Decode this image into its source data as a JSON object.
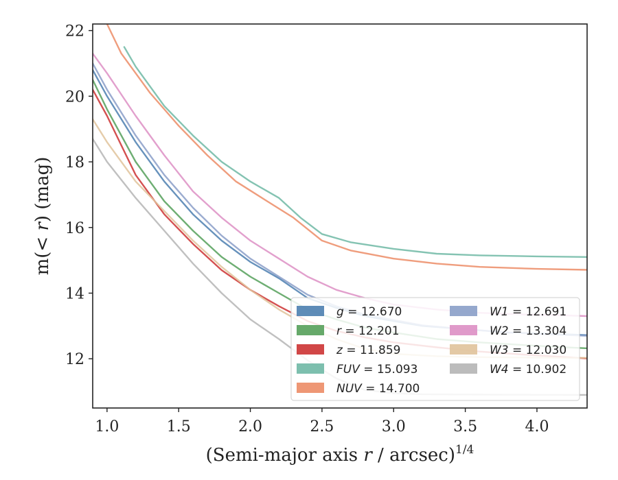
{
  "chart_data": {
    "type": "line",
    "xlabel_pre": "(Semi-major axis ",
    "xlabel_var": "r",
    "xlabel_post": " / arcsec)",
    "xlabel_sup": "1/4",
    "ylabel_pre": "m(< ",
    "ylabel_var": "r",
    "ylabel_post": ") (mag)",
    "xlim": [
      0.9,
      4.35
    ],
    "ylim": [
      22.2,
      10.5
    ],
    "y_inverted": true,
    "xticks": [
      1.0,
      1.5,
      2.0,
      2.5,
      3.0,
      3.5,
      4.0
    ],
    "xtick_labels": [
      "1.0",
      "1.5",
      "2.0",
      "2.5",
      "3.0",
      "3.5",
      "4.0"
    ],
    "yticks": [
      12,
      14,
      16,
      18,
      20,
      22
    ],
    "ytick_labels": [
      "12",
      "14",
      "16",
      "18",
      "20",
      "22"
    ],
    "grid": false,
    "legend_position": "lower-right",
    "series": [
      {
        "key": "g",
        "name": "g",
        "value_text": "= 12.670",
        "color": "#4c7fb0",
        "x": [
          0.9,
          1.0,
          1.2,
          1.4,
          1.6,
          1.8,
          2.0,
          2.2,
          2.4,
          2.6,
          2.8,
          3.0,
          3.2,
          3.5,
          3.8,
          4.1,
          4.35
        ],
        "y": [
          20.8,
          20.0,
          18.6,
          17.4,
          16.4,
          15.6,
          14.95,
          14.45,
          13.85,
          13.55,
          13.3,
          13.15,
          13.0,
          12.9,
          12.8,
          12.76,
          12.72
        ]
      },
      {
        "key": "r",
        "name": "r",
        "value_text": "= 12.201",
        "color": "#55a05a",
        "x": [
          0.9,
          1.0,
          1.2,
          1.4,
          1.6,
          1.8,
          2.0,
          2.2,
          2.4,
          2.6,
          2.8,
          3.0,
          3.3,
          3.6,
          3.9,
          4.2,
          4.35
        ],
        "y": [
          20.5,
          19.6,
          18.0,
          16.8,
          15.9,
          15.1,
          14.5,
          14.0,
          13.5,
          13.2,
          12.95,
          12.8,
          12.6,
          12.5,
          12.42,
          12.35,
          12.32
        ]
      },
      {
        "key": "z",
        "name": "z",
        "value_text": "= 11.859",
        "color": "#cc3333",
        "x": [
          0.9,
          1.0,
          1.2,
          1.4,
          1.6,
          1.8,
          2.0,
          2.2,
          2.4,
          2.6,
          2.8,
          3.0,
          3.3,
          3.6,
          3.9,
          4.2,
          4.35
        ],
        "y": [
          20.2,
          19.4,
          17.6,
          16.4,
          15.5,
          14.7,
          14.1,
          13.6,
          13.15,
          12.85,
          12.65,
          12.5,
          12.35,
          12.22,
          12.13,
          12.05,
          12.01
        ]
      },
      {
        "key": "fuv",
        "name": "FUV",
        "value_text": "= 15.093",
        "color": "#6fb8a5",
        "x": [
          1.12,
          1.2,
          1.4,
          1.6,
          1.8,
          2.0,
          2.2,
          2.35,
          2.5,
          2.7,
          3.0,
          3.3,
          3.6,
          4.0,
          4.35
        ],
        "y": [
          21.5,
          20.9,
          19.7,
          18.8,
          18.0,
          17.4,
          16.9,
          16.3,
          15.8,
          15.55,
          15.35,
          15.2,
          15.15,
          15.12,
          15.1
        ]
      },
      {
        "key": "nuv",
        "name": "NUV",
        "value_text": "= 14.700",
        "color": "#ec8c66",
        "x": [
          1.0,
          1.1,
          1.3,
          1.5,
          1.7,
          1.9,
          2.1,
          2.3,
          2.5,
          2.7,
          3.0,
          3.3,
          3.6,
          4.0,
          4.35
        ],
        "y": [
          22.2,
          21.3,
          20.1,
          19.1,
          18.2,
          17.4,
          16.85,
          16.3,
          15.6,
          15.3,
          15.05,
          14.9,
          14.8,
          14.74,
          14.71
        ]
      },
      {
        "key": "w1",
        "name": "W1",
        "value_text": "= 12.691",
        "color": "#8a9ec8",
        "x": [
          0.9,
          1.0,
          1.2,
          1.4,
          1.6,
          1.8,
          2.0,
          2.2,
          2.4,
          2.6,
          2.8,
          3.0,
          3.2,
          3.5,
          3.8,
          4.1,
          4.35
        ],
        "y": [
          21.0,
          20.2,
          18.8,
          17.6,
          16.6,
          15.75,
          15.05,
          14.5,
          13.95,
          13.6,
          13.35,
          13.18,
          13.02,
          12.9,
          12.8,
          12.74,
          12.7
        ]
      },
      {
        "key": "w2",
        "name": "W2",
        "value_text": "= 13.304",
        "color": "#dd8fc4",
        "x": [
          0.9,
          1.0,
          1.2,
          1.4,
          1.6,
          1.8,
          2.0,
          2.2,
          2.4,
          2.6,
          2.8,
          3.0,
          3.3,
          3.6,
          3.9,
          4.2,
          4.35
        ],
        "y": [
          21.3,
          20.7,
          19.4,
          18.2,
          17.1,
          16.3,
          15.6,
          15.05,
          14.5,
          14.1,
          13.85,
          13.65,
          13.5,
          13.4,
          13.35,
          13.32,
          13.3
        ]
      },
      {
        "key": "w3",
        "name": "W3",
        "value_text": "= 12.030",
        "color": "#e0c39b",
        "x": [
          0.9,
          1.0,
          1.2,
          1.4,
          1.6,
          1.8,
          2.0,
          2.2,
          2.4,
          2.6,
          2.8,
          3.0,
          3.3,
          3.6,
          3.9,
          4.2,
          4.35
        ],
        "y": [
          19.3,
          18.6,
          17.4,
          16.5,
          15.6,
          14.8,
          14.1,
          13.5,
          13.0,
          12.6,
          12.3,
          12.15,
          12.08,
          12.05,
          12.04,
          12.03,
          12.03
        ]
      },
      {
        "key": "w4",
        "name": "W4",
        "value_text": "= 10.902",
        "color": "#b5b5b5",
        "x": [
          0.9,
          1.0,
          1.2,
          1.4,
          1.6,
          1.8,
          2.0,
          2.2,
          2.4,
          2.6,
          2.8,
          3.0,
          3.2,
          3.5,
          3.8,
          4.1,
          4.35
        ],
        "y": [
          18.7,
          18.0,
          16.9,
          15.9,
          14.9,
          14.0,
          13.2,
          12.6,
          11.95,
          11.4,
          11.05,
          10.95,
          10.92,
          10.91,
          10.905,
          10.902,
          10.9
        ]
      }
    ],
    "legend_columns": [
      [
        "g",
        "r",
        "z",
        "fuv",
        "nuv"
      ],
      [
        "w1",
        "w2",
        "w3",
        "w4"
      ]
    ]
  }
}
